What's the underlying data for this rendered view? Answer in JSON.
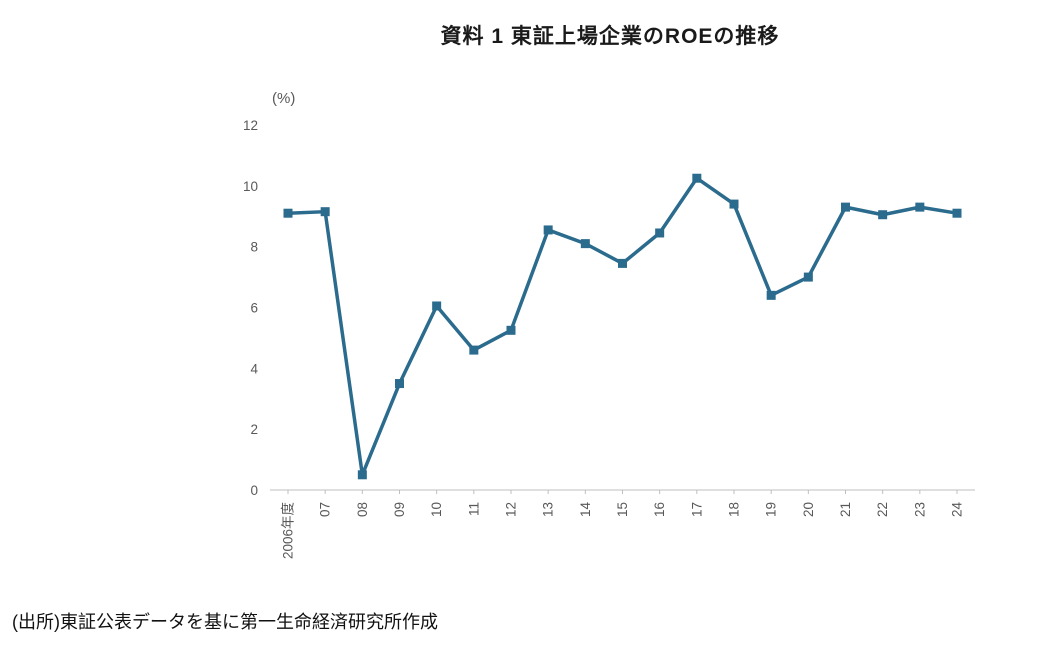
{
  "page": {
    "title": "資料 1  東証上場企業のROEの推移",
    "source": "(出所)東証公表データを基に第一生命経済研究所作成"
  },
  "chart_data": {
    "type": "line",
    "title": "資料 1  東証上場企業のROEの推移",
    "unit_label": "(%)",
    "categories": [
      "2006年度",
      "07",
      "08",
      "09",
      "10",
      "11",
      "12",
      "13",
      "14",
      "15",
      "16",
      "17",
      "18",
      "19",
      "20",
      "21",
      "22",
      "23",
      "24"
    ],
    "series": [
      {
        "name": "ROE",
        "values": [
          9.1,
          9.15,
          0.5,
          3.5,
          6.05,
          4.6,
          5.25,
          8.55,
          8.1,
          7.45,
          8.45,
          10.25,
          9.4,
          6.4,
          7.0,
          9.3,
          9.05,
          9.3,
          9.1
        ]
      }
    ],
    "ylim": [
      0,
      12
    ],
    "ytick_step": 2,
    "yticks": [
      0,
      2,
      4,
      6,
      8,
      10,
      12
    ],
    "grid": false,
    "legend": "none",
    "marker": "square",
    "colors": {
      "line": "#2b6b8d",
      "marker": "#2b6b8d",
      "axis_line": "#bfbfbf",
      "tick_text": "#595959",
      "title_text": "#1a1a1a"
    },
    "source": "(出所)東証公表データを基に第一生命経済研究所作成"
  }
}
